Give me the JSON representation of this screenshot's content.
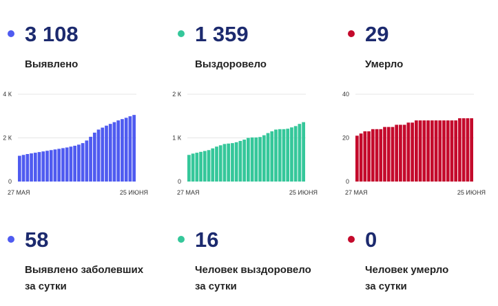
{
  "colors": {
    "cases": "#4f5bf0",
    "recovered": "#35c79a",
    "deaths": "#c40a2c"
  },
  "totals": [
    {
      "value": "3 108",
      "label": "Выявлено",
      "color": "#4f5bf0"
    },
    {
      "value": "1 359",
      "label": "Выздоровело",
      "color": "#35c79a"
    },
    {
      "value": "29",
      "label": "Умерло",
      "color": "#c40a2c"
    }
  ],
  "daily": [
    {
      "value": "58",
      "line1": "Выявлено заболевших",
      "line2": "за сутки",
      "color": "#4f5bf0"
    },
    {
      "value": "16",
      "line1": "Человек выздоровело",
      "line2": "за сутки",
      "color": "#35c79a"
    },
    {
      "value": "0",
      "line1": "Человек умерло",
      "line2": "за сутки",
      "color": "#c40a2c"
    }
  ],
  "chart_data": [
    {
      "type": "bar",
      "color": "#4f5bf0",
      "x_start_label": "27 МАЯ",
      "x_end_label": "25 ИЮНЯ",
      "y_ticks": [
        {
          "value": 0,
          "label": "0"
        },
        {
          "value": 2000,
          "label": "2 К"
        },
        {
          "value": 4000,
          "label": "4 К"
        }
      ],
      "ylim": [
        0,
        4000
      ],
      "values": [
        1180,
        1220,
        1260,
        1290,
        1320,
        1350,
        1380,
        1410,
        1440,
        1470,
        1500,
        1530,
        1560,
        1600,
        1640,
        1690,
        1760,
        1880,
        2050,
        2240,
        2380,
        2470,
        2560,
        2640,
        2720,
        2800,
        2860,
        2920,
        2990,
        3050
      ]
    },
    {
      "type": "bar",
      "color": "#35c79a",
      "x_start_label": "27 МАЯ",
      "x_end_label": "25 ИЮНЯ",
      "y_ticks": [
        {
          "value": 0,
          "label": "0"
        },
        {
          "value": 1000,
          "label": "1 К"
        },
        {
          "value": 2000,
          "label": "2 К"
        }
      ],
      "ylim": [
        0,
        2000
      ],
      "values": [
        610,
        640,
        660,
        680,
        700,
        720,
        760,
        800,
        830,
        860,
        870,
        880,
        900,
        930,
        960,
        1000,
        1010,
        1010,
        1020,
        1060,
        1110,
        1150,
        1190,
        1200,
        1200,
        1210,
        1240,
        1270,
        1320,
        1360
      ]
    },
    {
      "type": "bar",
      "color": "#c40a2c",
      "x_start_label": "27 МАЯ",
      "x_end_label": "25 ИЮНЯ",
      "y_ticks": [
        {
          "value": 0,
          "label": "0"
        },
        {
          "value": 20,
          "label": "20"
        },
        {
          "value": 40,
          "label": "40"
        }
      ],
      "ylim": [
        0,
        40
      ],
      "values": [
        21,
        22,
        23,
        23,
        24,
        24,
        24,
        25,
        25,
        25,
        26,
        26,
        26,
        27,
        27,
        28,
        28,
        28,
        28,
        28,
        28,
        28,
        28,
        28,
        28,
        28,
        29,
        29,
        29,
        29
      ]
    }
  ]
}
